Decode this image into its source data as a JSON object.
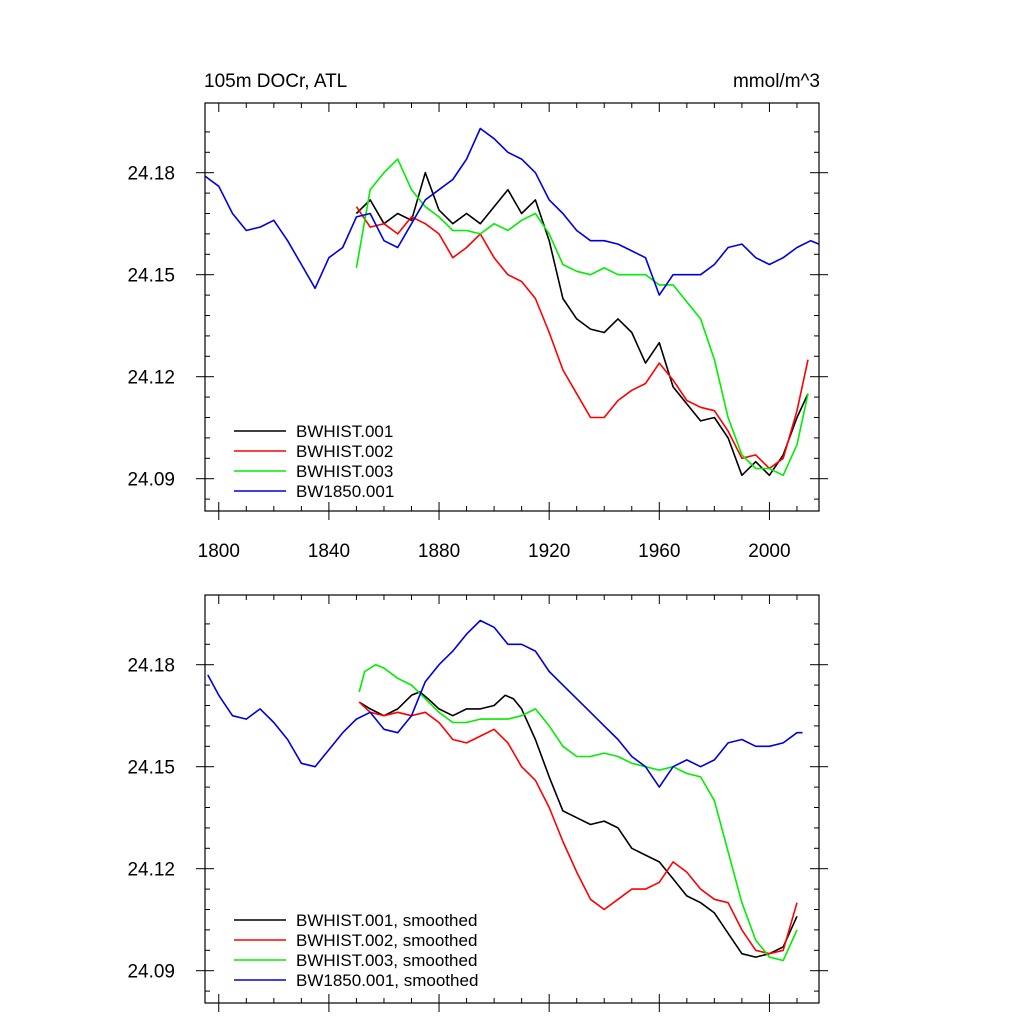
{
  "chart_data": [
    {
      "type": "line",
      "title_left": "105m DOCr, ATL",
      "title_right": "mmol/m^3",
      "xlim": [
        1795,
        2018
      ],
      "ylim": [
        24.0805,
        24.2005
      ],
      "xticks": [
        1800,
        1840,
        1880,
        1920,
        1960,
        2000
      ],
      "xtick_labels": [
        "1800",
        "1840",
        "1880",
        "1920",
        "1960",
        "2000"
      ],
      "yticks": [
        24.09,
        24.12,
        24.15,
        24.18
      ],
      "ytick_labels": [
        "24.09",
        "24.12",
        "24.15",
        "24.18"
      ],
      "legend_position": "bottom-left",
      "series": [
        {
          "name": "BWHIST.001",
          "color": "#000000",
          "x": [
            1850,
            1855,
            1860,
            1865,
            1870,
            1875,
            1880,
            1885,
            1890,
            1895,
            1900,
            1905,
            1910,
            1915,
            1920,
            1925,
            1930,
            1935,
            1940,
            1945,
            1950,
            1955,
            1960,
            1965,
            1970,
            1975,
            1980,
            1985,
            1990,
            1995,
            2000,
            2005,
            2010,
            2014
          ],
          "y": [
            24.168,
            24.172,
            24.165,
            24.168,
            24.166,
            24.18,
            24.169,
            24.165,
            24.168,
            24.165,
            24.17,
            24.175,
            24.168,
            24.172,
            24.16,
            24.143,
            24.137,
            24.134,
            24.133,
            24.137,
            24.133,
            24.124,
            24.13,
            24.117,
            24.112,
            24.107,
            24.108,
            24.102,
            24.091,
            24.095,
            24.091,
            24.097,
            24.108,
            24.115
          ]
        },
        {
          "name": "BWHIST.002",
          "color": "#ff0000",
          "x": [
            1850,
            1855,
            1860,
            1865,
            1870,
            1875,
            1880,
            1885,
            1890,
            1895,
            1900,
            1905,
            1910,
            1915,
            1920,
            1925,
            1930,
            1935,
            1940,
            1945,
            1950,
            1955,
            1960,
            1965,
            1970,
            1975,
            1980,
            1985,
            1990,
            1995,
            2000,
            2005,
            2010,
            2014
          ],
          "y": [
            24.17,
            24.164,
            24.165,
            24.162,
            24.167,
            24.165,
            24.162,
            24.155,
            24.158,
            24.162,
            24.155,
            24.15,
            24.148,
            24.143,
            24.133,
            24.122,
            24.115,
            24.108,
            24.108,
            24.113,
            24.116,
            24.118,
            24.124,
            24.119,
            24.113,
            24.111,
            24.11,
            24.104,
            24.096,
            24.097,
            24.093,
            24.096,
            24.11,
            24.125
          ]
        },
        {
          "name": "BWHIST.003",
          "color": "#00ee00",
          "x": [
            1850,
            1855,
            1860,
            1865,
            1870,
            1875,
            1880,
            1885,
            1890,
            1895,
            1900,
            1905,
            1910,
            1915,
            1920,
            1925,
            1930,
            1935,
            1940,
            1945,
            1950,
            1955,
            1960,
            1965,
            1970,
            1975,
            1980,
            1985,
            1990,
            1995,
            2000,
            2005,
            2010,
            2014
          ],
          "y": [
            24.152,
            24.175,
            24.18,
            24.184,
            24.175,
            24.17,
            24.167,
            24.163,
            24.163,
            24.162,
            24.165,
            24.163,
            24.166,
            24.168,
            24.162,
            24.153,
            24.151,
            24.15,
            24.152,
            24.15,
            24.15,
            24.15,
            24.147,
            24.147,
            24.142,
            24.137,
            24.125,
            24.108,
            24.097,
            24.093,
            24.093,
            24.091,
            24.1,
            24.115
          ]
        },
        {
          "name": "BW1850.001",
          "color": "#0000dd",
          "x": [
            1795,
            1800,
            1805,
            1810,
            1815,
            1820,
            1825,
            1830,
            1835,
            1840,
            1845,
            1850,
            1855,
            1860,
            1865,
            1870,
            1875,
            1880,
            1885,
            1890,
            1895,
            1900,
            1905,
            1910,
            1915,
            1920,
            1925,
            1930,
            1935,
            1940,
            1945,
            1950,
            1955,
            1960,
            1965,
            1970,
            1975,
            1980,
            1985,
            1990,
            1995,
            2000,
            2005,
            2010,
            2015,
            2018
          ],
          "y": [
            24.179,
            24.176,
            24.168,
            24.163,
            24.164,
            24.166,
            24.16,
            24.153,
            24.146,
            24.155,
            24.158,
            24.167,
            24.168,
            24.16,
            24.158,
            24.165,
            24.172,
            24.175,
            24.178,
            24.184,
            24.193,
            24.19,
            24.186,
            24.184,
            24.18,
            24.172,
            24.168,
            24.163,
            24.16,
            24.16,
            24.159,
            24.157,
            24.155,
            24.144,
            24.15,
            24.15,
            24.15,
            24.153,
            24.158,
            24.159,
            24.155,
            24.153,
            24.155,
            24.158,
            24.16,
            24.159
          ]
        }
      ]
    },
    {
      "type": "line",
      "xlim": [
        1795,
        2018
      ],
      "ylim": [
        24.0805,
        24.2005
      ],
      "xticks": [
        1800,
        1840,
        1880,
        1920,
        1960,
        2000
      ],
      "yticks": [
        24.09,
        24.12,
        24.15,
        24.18
      ],
      "ytick_labels": [
        "24.09",
        "24.12",
        "24.15",
        "24.18"
      ],
      "legend_position": "bottom-left",
      "series": [
        {
          "name": "BWHIST.001, smoothed",
          "color": "#000000",
          "x": [
            1851,
            1855,
            1860,
            1865,
            1870,
            1873,
            1876,
            1880,
            1885,
            1890,
            1895,
            1900,
            1904,
            1907,
            1910,
            1915,
            1920,
            1925,
            1930,
            1935,
            1940,
            1945,
            1950,
            1955,
            1960,
            1965,
            1970,
            1975,
            1980,
            1985,
            1990,
            1995,
            2000,
            2005,
            2010
          ],
          "y": [
            24.169,
            24.167,
            24.165,
            24.167,
            24.171,
            24.172,
            24.17,
            24.167,
            24.165,
            24.167,
            24.167,
            24.168,
            24.171,
            24.17,
            24.167,
            24.158,
            24.147,
            24.137,
            24.135,
            24.133,
            24.134,
            24.132,
            24.126,
            24.124,
            24.122,
            24.117,
            24.112,
            24.11,
            24.107,
            24.101,
            24.095,
            24.094,
            24.095,
            24.097,
            24.106
          ]
        },
        {
          "name": "BWHIST.002, smoothed",
          "color": "#ff0000",
          "x": [
            1851,
            1855,
            1860,
            1865,
            1870,
            1875,
            1880,
            1885,
            1890,
            1895,
            1900,
            1905,
            1910,
            1915,
            1920,
            1925,
            1930,
            1935,
            1940,
            1945,
            1950,
            1955,
            1960,
            1965,
            1970,
            1975,
            1980,
            1985,
            1990,
            1995,
            2000,
            2005,
            2010
          ],
          "y": [
            24.169,
            24.166,
            24.165,
            24.166,
            24.165,
            24.166,
            24.163,
            24.158,
            24.157,
            24.159,
            24.161,
            24.157,
            24.15,
            24.146,
            24.138,
            24.128,
            24.119,
            24.111,
            24.108,
            24.111,
            24.114,
            24.114,
            24.116,
            24.122,
            24.119,
            24.114,
            24.111,
            24.11,
            24.102,
            24.096,
            24.095,
            24.096,
            24.11
          ]
        },
        {
          "name": "BWHIST.003, smoothed",
          "color": "#00ee00",
          "x": [
            1851,
            1853,
            1857,
            1860,
            1865,
            1870,
            1875,
            1880,
            1885,
            1890,
            1895,
            1900,
            1905,
            1910,
            1915,
            1920,
            1925,
            1930,
            1935,
            1940,
            1945,
            1950,
            1955,
            1960,
            1965,
            1970,
            1975,
            1980,
            1985,
            1990,
            1995,
            2000,
            2005,
            2010
          ],
          "y": [
            24.172,
            24.178,
            24.18,
            24.179,
            24.176,
            24.174,
            24.17,
            24.166,
            24.163,
            24.163,
            24.164,
            24.164,
            24.164,
            24.165,
            24.167,
            24.162,
            24.156,
            24.153,
            24.153,
            24.154,
            24.153,
            24.151,
            24.15,
            24.149,
            24.15,
            24.148,
            24.147,
            24.14,
            24.125,
            24.11,
            24.099,
            24.094,
            24.093,
            24.102
          ]
        },
        {
          "name": "BW1850.001, smoothed",
          "color": "#0000dd",
          "x": [
            1796,
            1800,
            1805,
            1810,
            1815,
            1820,
            1825,
            1830,
            1835,
            1840,
            1845,
            1850,
            1855,
            1860,
            1865,
            1870,
            1875,
            1880,
            1885,
            1890,
            1895,
            1900,
            1905,
            1910,
            1915,
            1920,
            1925,
            1930,
            1935,
            1940,
            1945,
            1950,
            1955,
            1960,
            1965,
            1970,
            1975,
            1980,
            1985,
            1990,
            1995,
            2000,
            2005,
            2010,
            2012
          ],
          "y": [
            24.177,
            24.171,
            24.165,
            24.164,
            24.167,
            24.163,
            24.158,
            24.151,
            24.15,
            24.155,
            24.16,
            24.164,
            24.166,
            24.161,
            24.16,
            24.165,
            24.175,
            24.18,
            24.184,
            24.189,
            24.193,
            24.191,
            24.186,
            24.186,
            24.184,
            24.178,
            24.174,
            24.17,
            24.166,
            24.162,
            24.158,
            24.153,
            24.15,
            24.144,
            24.15,
            24.152,
            24.15,
            24.152,
            24.157,
            24.158,
            24.156,
            24.156,
            24.157,
            24.16,
            24.16
          ]
        }
      ]
    }
  ]
}
